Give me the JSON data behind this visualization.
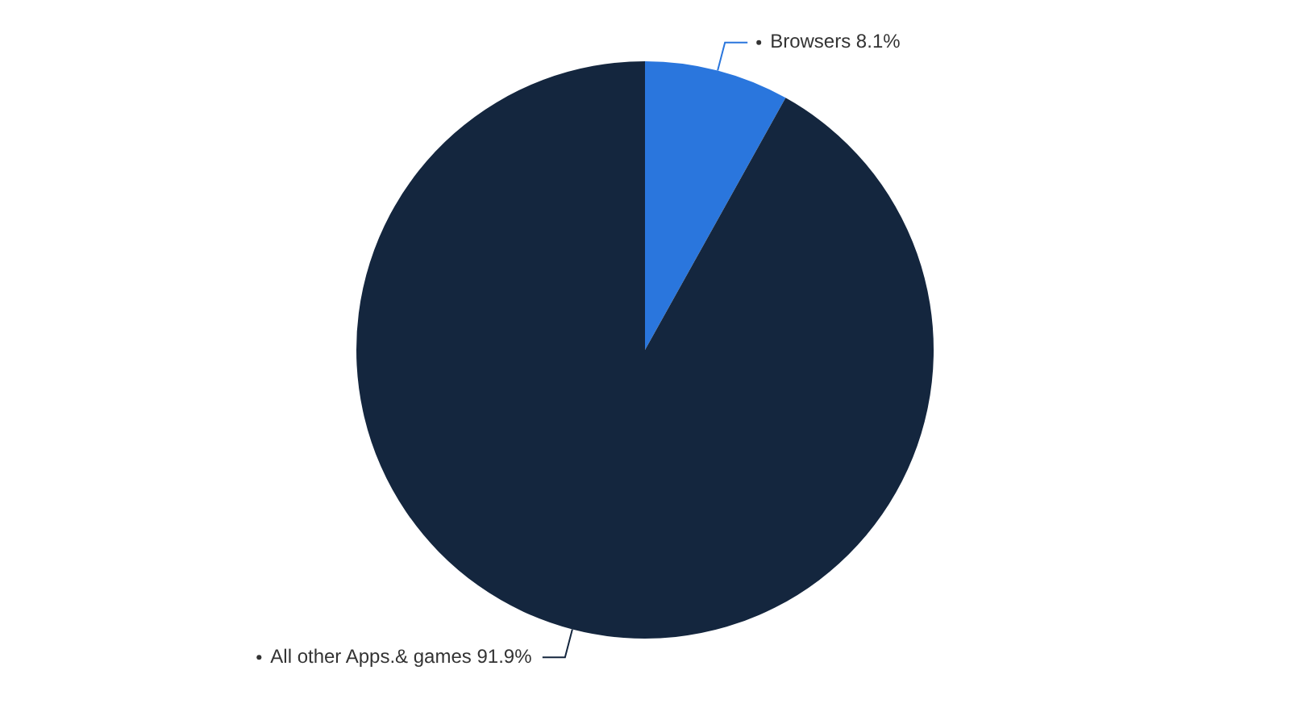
{
  "chart_data": {
    "type": "pie",
    "categories": [
      "Browsers",
      "All other Apps.& games"
    ],
    "values": [
      8.1,
      91.9
    ],
    "value_labels": [
      "8.1%",
      "91.9%"
    ],
    "colors": [
      "#2a76dd",
      "#14263e"
    ],
    "legend": false
  }
}
